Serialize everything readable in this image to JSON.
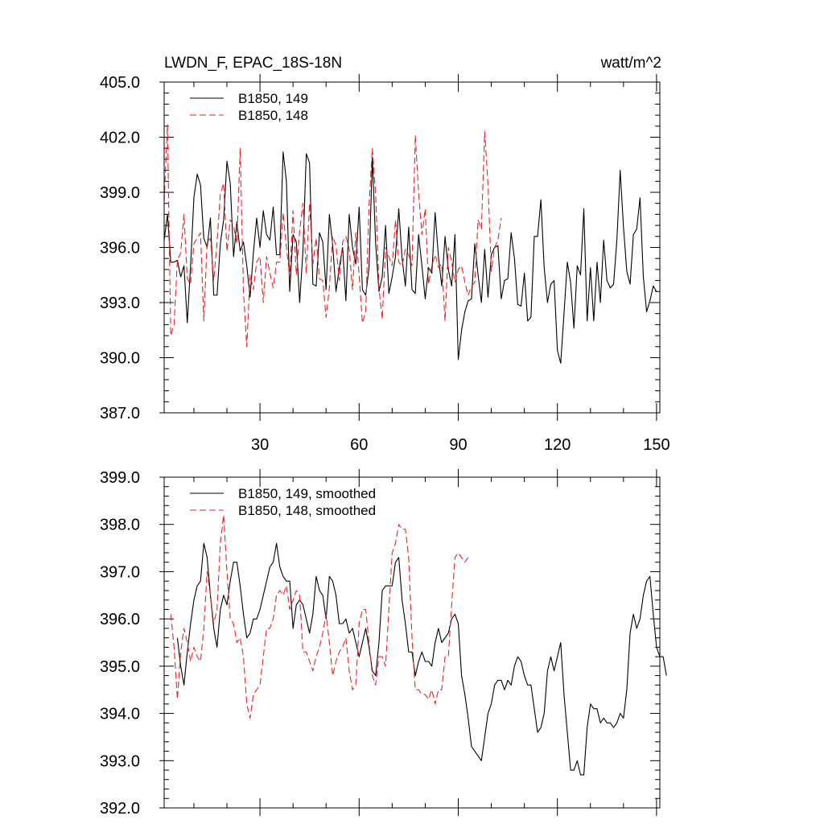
{
  "chart_data": [
    {
      "type": "line",
      "title": "LWDN_F, EPAC_18S-18N",
      "units": "watt/m^2",
      "ylim": [
        387.0,
        405.0
      ],
      "yticks": [
        387.0,
        390.0,
        393.0,
        396.0,
        399.0,
        402.0,
        405.0
      ],
      "ytick_labels": [
        "387.0",
        "390.0",
        "393.0",
        "396.0",
        "399.0",
        "402.0",
        "405.0"
      ],
      "xlim": [
        1,
        151
      ],
      "xticks": [
        30,
        60,
        90,
        120,
        150
      ],
      "xtick_labels": [
        "30",
        "60",
        "90",
        "120",
        "150"
      ],
      "grid": false,
      "legend_position": "top-left",
      "series": [
        {
          "name": "B1850, 149",
          "color": "#000000",
          "style": "solid",
          "x_start": 1,
          "values": [
            396.4,
            397.8,
            395.2,
            395.2,
            395.3,
            394.4,
            395.0,
            391.9,
            395.0,
            398.7,
            400.0,
            399.4,
            396.5,
            396.0,
            397.6,
            393.4,
            393.4,
            396.2,
            397.5,
            400.7,
            399.5,
            395.5,
            397.4,
            395.8,
            396.3,
            395.0,
            393.3,
            395.7,
            397.6,
            396.0,
            398.0,
            396.7,
            396.4,
            398.2,
            395.6,
            395.6,
            401.2,
            399.6,
            393.6,
            396.7,
            396.3,
            393.0,
            395.8,
            401.1,
            400.6,
            394.0,
            393.9,
            396.8,
            396.3,
            393.7,
            397.8,
            396.1,
            393.6,
            394.9,
            396.0,
            393.1,
            397.8,
            396.0,
            395.1,
            398.2,
            393.7,
            393.4,
            394.9,
            400.9,
            396.2,
            393.6,
            394.4,
            397.2,
            393.5,
            394.4,
            395.5,
            398.1,
            395.4,
            393.9,
            397.1,
            393.7,
            393.5,
            396.7,
            395.0,
            393.2,
            394.9,
            394.6,
            397.9,
            395.5,
            393.9,
            396.6,
            394.8,
            393.9,
            396.7,
            389.9,
            391.5,
            392.5,
            393.1,
            393.2,
            396.2,
            394.5,
            393.0,
            395.9,
            393.3,
            395.6,
            396.0,
            396.1,
            393.2,
            394.2,
            394.3,
            396.8,
            395.4,
            392.9,
            392.8,
            394.6,
            392.0,
            392.2,
            396.6,
            396.6,
            398.6,
            394.9,
            393.0,
            394.0,
            394.2,
            390.4,
            389.7,
            392.4,
            395.2,
            394.1,
            391.6,
            395.0,
            394.5,
            398.1,
            392.0,
            394.9,
            392.0,
            395.2,
            393.0,
            396.4,
            394.2,
            393.8,
            394.0,
            396.4,
            400.2,
            397.1,
            394.7,
            394.0,
            396.7,
            397.0,
            398.7,
            394.4,
            392.5,
            393.1,
            393.9,
            393.6
          ]
        },
        {
          "name": "B1850, 148",
          "color": "#ee2222",
          "style": "dashed",
          "x_start": 1,
          "values": [
            398.5,
            402.7,
            391.2,
            391.8,
            395.3,
            395.7,
            397.8,
            394.3,
            394.0,
            396.2,
            396.5,
            396.8,
            392.0,
            396.3,
            396.5,
            394.2,
            396.3,
            398.9,
            399.5,
            395.8,
            397.5,
            397.2,
            396.2,
            401.4,
            393.6,
            390.6,
            394.5,
            393.7,
            395.2,
            395.5,
            393.0,
            395.5,
            394.6,
            393.8,
            395.2,
            395.2,
            397.9,
            396.0,
            394.4,
            398.0,
            394.5,
            396.9,
            398.4,
            394.6,
            398.4,
            395.1,
            396.5,
            394.3,
            394.2,
            392.2,
            393.8,
            396.6,
            396.1,
            394.2,
            396.3,
            396.6,
            395.9,
            393.7,
            396.8,
            394.5,
            391.9,
            392.5,
            398.3,
            401.4,
            398.9,
            393.8,
            392.1,
            396.0,
            395.5,
            395.0,
            397.5,
            395.2,
            395.0,
            395.9,
            395.6,
            395.0,
            402.1,
            399.0,
            396.7,
            398.1,
            394.0,
            395.0,
            395.6,
            394.9,
            395.1,
            392.0,
            396.0,
            395.2,
            394.1,
            394.8,
            395.0,
            394.1,
            393.4,
            393.9,
            394.1,
            397.5,
            397.0,
            402.3,
            399.4,
            394.7,
            396.0,
            396.4,
            397.6
          ]
        }
      ]
    },
    {
      "type": "line",
      "ylim": [
        392.0,
        399.0
      ],
      "yticks": [
        392.0,
        393.0,
        394.0,
        395.0,
        396.0,
        397.0,
        398.0,
        399.0
      ],
      "ytick_labels": [
        "392.0",
        "393.0",
        "394.0",
        "395.0",
        "396.0",
        "397.0",
        "398.0",
        "399.0"
      ],
      "xlim": [
        1,
        151
      ],
      "xticks": [
        30,
        60,
        90,
        120,
        150
      ],
      "grid": false,
      "legend_position": "top-left",
      "series": [
        {
          "name": "B1850, 149, smoothed",
          "color": "#000000",
          "style": "solid",
          "x_start": 5,
          "values": [
            395.6,
            395.0,
            394.6,
            395.3,
            395.9,
            396.4,
            396.7,
            396.8,
            397.6,
            397.3,
            396.5,
            395.8,
            395.4,
            396.2,
            396.5,
            396.3,
            396.8,
            397.2,
            397.2,
            396.7,
            396.1,
            395.6,
            395.7,
            396.0,
            396.0,
            396.2,
            396.5,
            396.8,
            397.1,
            397.2,
            397.6,
            397.1,
            396.9,
            396.8,
            396.8,
            395.8,
            396.3,
            396.4,
            396.3,
            396.0,
            395.7,
            396.1,
            396.9,
            396.6,
            396.5,
            396.0,
            396.9,
            396.8,
            396.5,
            395.9,
            395.9,
            396.0,
            395.7,
            395.8,
            395.5,
            395.2,
            395.5,
            395.8,
            395.4,
            394.9,
            394.8,
            395.5,
            396.6,
            396.7,
            396.7,
            396.7,
            397.2,
            397.3,
            396.4,
            395.9,
            395.3,
            395.3,
            394.8,
            395.1,
            395.3,
            395.1,
            395.1,
            395.0,
            395.5,
            395.8,
            395.5,
            395.6,
            395.7,
            396.0,
            396.1,
            395.9,
            394.8,
            394.4,
            393.9,
            393.3,
            393.2,
            393.1,
            393.0,
            393.5,
            394.0,
            394.2,
            394.6,
            394.7,
            394.7,
            394.5,
            394.7,
            394.6,
            395.0,
            395.2,
            395.1,
            394.8,
            394.6,
            394.6,
            394.1,
            393.6,
            393.7,
            394.0,
            394.9,
            395.2,
            394.9,
            395.2,
            395.5,
            394.4,
            393.6,
            392.8,
            392.8,
            393.0,
            392.7,
            392.7,
            393.7,
            394.2,
            394.1,
            394.1,
            393.8,
            393.9,
            393.8,
            393.8,
            393.7,
            393.8,
            394.0,
            393.9,
            394.5,
            395.7,
            396.1,
            395.8,
            396.0,
            396.5,
            396.8,
            396.9,
            396.1,
            395.4,
            395.2,
            395.2,
            394.8
          ]
        },
        {
          "name": "B1850, 148, smoothed",
          "color": "#ee2222",
          "style": "dashed",
          "x_start": 3,
          "values": [
            396.1,
            395.4,
            394.3,
            395.3,
            395.8,
            395.5,
            395.1,
            395.4,
            395.2,
            395.1,
            395.8,
            397.0,
            396.5,
            395.9,
            396.2,
            397.6,
            398.2,
            397.0,
            396.0,
            395.9,
            395.5,
            395.6,
            395.2,
            394.2,
            393.9,
            394.4,
            394.5,
            394.6,
            395.2,
            395.8,
            395.8,
            396.0,
            396.5,
            396.6,
            396.5,
            396.7,
            396.2,
            396.4,
            396.6,
            396.5,
            395.3,
            395.3,
            395.1,
            394.9,
            395.2,
            395.4,
            395.7,
            396.1,
            395.5,
            394.8,
            395.1,
            395.3,
            395.4,
            395.6,
            394.9,
            394.5,
            394.6,
            395.9,
            396.2,
            396.2,
            395.5,
            394.8,
            394.6,
            395.2,
            395.2,
            395.0,
            396.2,
            397.4,
            397.6,
            398.0,
            397.9,
            397.9,
            397.3,
            395.6,
            394.5,
            394.5,
            394.4,
            394.4,
            394.3,
            394.5,
            394.2,
            394.5,
            394.5,
            395.2,
            395.2,
            396.3,
            397.3,
            397.4,
            397.3,
            397.2,
            397.3
          ]
        }
      ]
    }
  ]
}
